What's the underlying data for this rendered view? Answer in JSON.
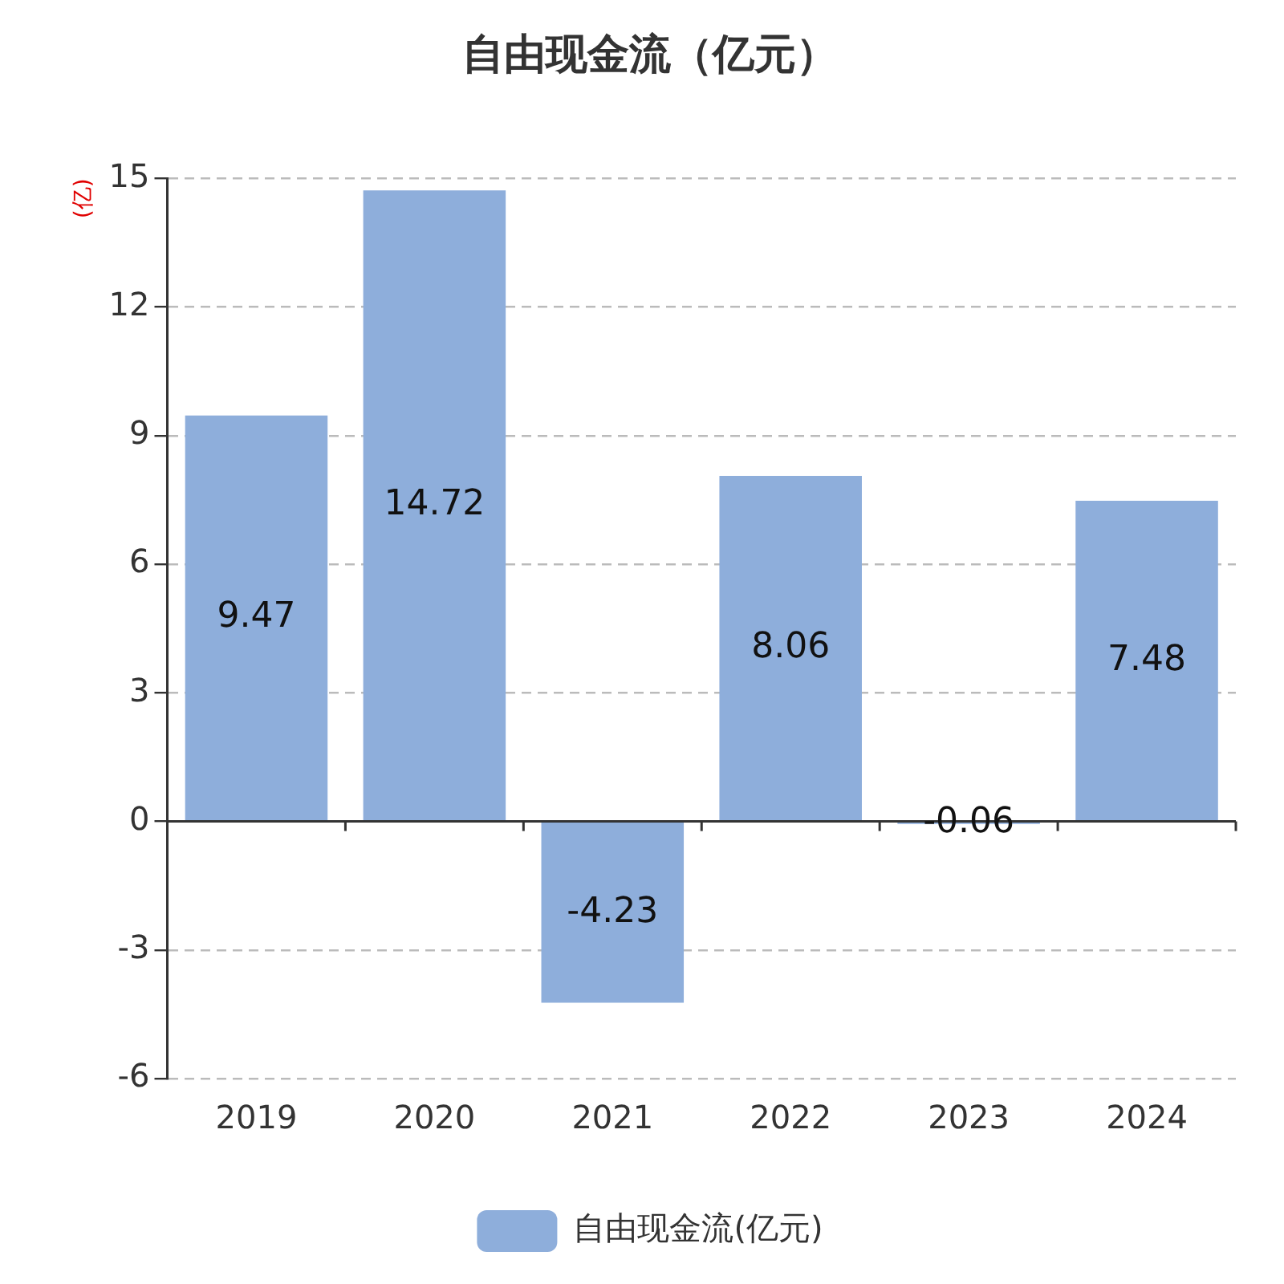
{
  "chart_data": {
    "type": "bar",
    "title": "自由现金流（亿元）",
    "ylabel": "(亿)",
    "categories": [
      "2019",
      "2020",
      "2021",
      "2022",
      "2023",
      "2024"
    ],
    "series": [
      {
        "name": "自由现金流(亿元)",
        "color": "#8eaedb",
        "values": [
          9.47,
          14.72,
          -4.23,
          8.06,
          -0.06,
          7.48
        ]
      }
    ],
    "ylim": [
      -6,
      15
    ],
    "yticks": [
      -6,
      -3,
      0,
      3,
      6,
      9,
      12,
      15
    ],
    "grid": "y",
    "legend": "bottom",
    "data_labels": true
  }
}
